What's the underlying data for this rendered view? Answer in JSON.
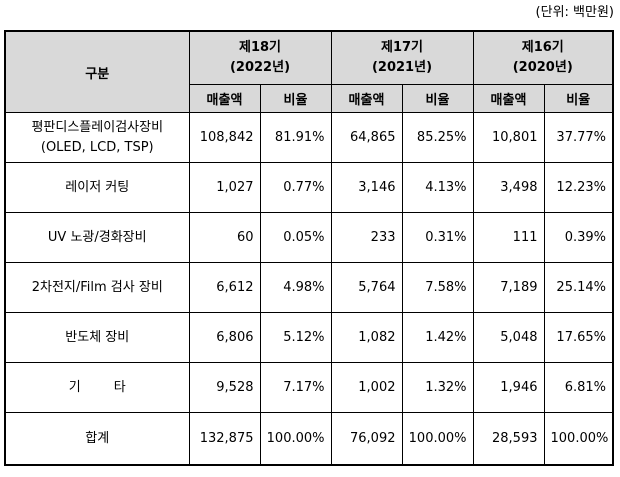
{
  "unit_note": "(단위: 백만원)",
  "header": {
    "category": "구분",
    "years": [
      {
        "title": "제18기",
        "period": "(2022년)"
      },
      {
        "title": "제17기",
        "period": "(2021년)"
      },
      {
        "title": "제16기",
        "period": "(2020년)"
      }
    ],
    "sales_label": "매출액",
    "ratio_label": "비율"
  },
  "rows": [
    {
      "label_line1": "평판디스플레이검사장비",
      "label_line2": "(OLED, LCD, TSP)",
      "values": [
        "108,842",
        "81.91%",
        "64,865",
        "85.25%",
        "10,801",
        "37.77%"
      ]
    },
    {
      "label_line1": "레이저 커팅",
      "label_line2": "",
      "values": [
        "1,027",
        "0.77%",
        "3,146",
        "4.13%",
        "3,498",
        "12.23%"
      ]
    },
    {
      "label_line1": "UV 노광/경화장비",
      "label_line2": "",
      "values": [
        "60",
        "0.05%",
        "233",
        "0.31%",
        "111",
        "0.39%"
      ]
    },
    {
      "label_line1": "2차전지/Film 검사 장비",
      "label_line2": "",
      "values": [
        "6,612",
        "4.98%",
        "5,764",
        "7.58%",
        "7,189",
        "25.14%"
      ]
    },
    {
      "label_line1": "반도체 장비",
      "label_line2": "",
      "values": [
        "6,806",
        "5.12%",
        "1,082",
        "1.42%",
        "5,048",
        "17.65%"
      ]
    },
    {
      "label_line1": "기        타",
      "label_line2": "",
      "values": [
        "9,528",
        "7.17%",
        "1,002",
        "1.32%",
        "1,946",
        "6.81%"
      ]
    },
    {
      "label_line1": "합계",
      "label_line2": "",
      "values": [
        "132,875",
        "100.00%",
        "76,092",
        "100.00%",
        "28,593",
        "100.00%"
      ]
    }
  ]
}
